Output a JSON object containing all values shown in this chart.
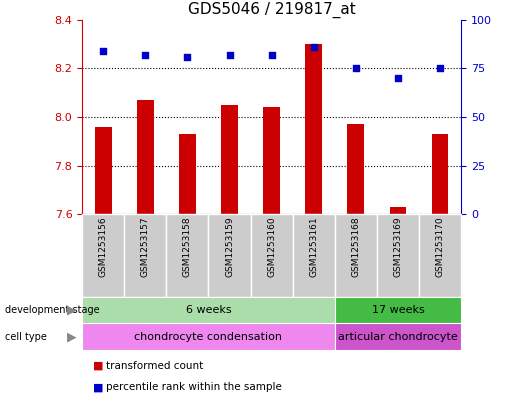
{
  "title": "GDS5046 / 219817_at",
  "samples": [
    "GSM1253156",
    "GSM1253157",
    "GSM1253158",
    "GSM1253159",
    "GSM1253160",
    "GSM1253161",
    "GSM1253168",
    "GSM1253169",
    "GSM1253170"
  ],
  "transformed_count": [
    7.96,
    8.07,
    7.93,
    8.05,
    8.04,
    8.3,
    7.97,
    7.63,
    7.93
  ],
  "percentile_rank": [
    84,
    82,
    81,
    82,
    82,
    86,
    75,
    70,
    75
  ],
  "bar_bottom": 7.6,
  "ylim_left": [
    7.6,
    8.4
  ],
  "ylim_right": [
    0,
    100
  ],
  "yticks_left": [
    7.6,
    7.8,
    8.0,
    8.2,
    8.4
  ],
  "yticks_right": [
    0,
    25,
    50,
    75,
    100
  ],
  "bar_color": "#cc0000",
  "dot_color": "#0000cc",
  "development_stage_groups": [
    {
      "label": "6 weeks",
      "start": 0,
      "end": 6,
      "color": "#aaddaa"
    },
    {
      "label": "17 weeks",
      "start": 6,
      "end": 9,
      "color": "#44bb44"
    }
  ],
  "cell_type_groups": [
    {
      "label": "chondrocyte condensation",
      "start": 0,
      "end": 6,
      "color": "#ee88ee"
    },
    {
      "label": "articular chondrocyte",
      "start": 6,
      "end": 9,
      "color": "#cc55cc"
    }
  ],
  "legend_items": [
    {
      "color": "#cc0000",
      "label": "transformed count"
    },
    {
      "color": "#0000cc",
      "label": "percentile rank within the sample"
    }
  ],
  "left_label_color": "#cc0000",
  "right_label_color": "#0000cc",
  "title_fontsize": 11,
  "tick_fontsize": 8,
  "bar_width": 0.4
}
